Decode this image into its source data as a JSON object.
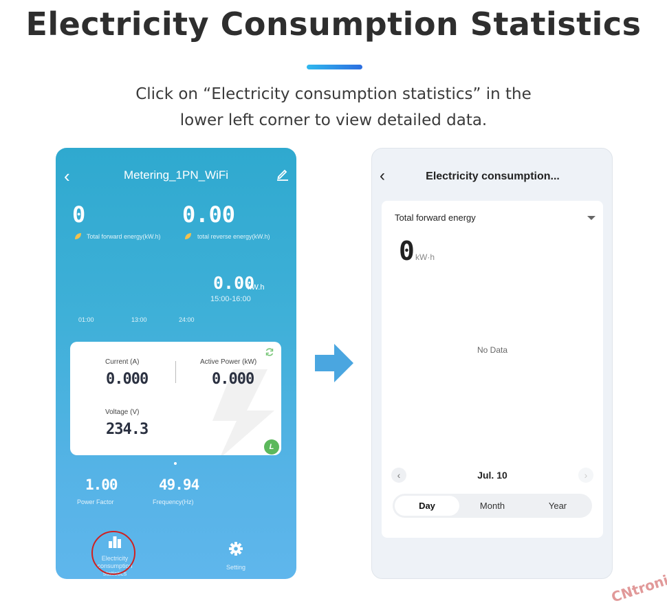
{
  "header": {
    "title": "Electricity Consumption Statistics",
    "subtitle_line1": "Click on “Electricity consumption statistics” in the",
    "subtitle_line2": "lower left corner to view detailed data."
  },
  "left_phone": {
    "title": "Metering_1PN_WiFi",
    "forward_energy_value": "0",
    "forward_energy_label": "Total forward energy(kW.h)",
    "reverse_energy_value": "0.00",
    "reverse_energy_label": "total reverse energy(kW.h)",
    "hour_value": "0.00",
    "hour_unit": "kW.h",
    "hour_range": "15:00-16:00",
    "time_ticks": [
      "01:00",
      "13:00",
      "24:00"
    ],
    "card": {
      "current_label": "Current (A)",
      "current_value": "0.000",
      "power_label": "Active Power (kW)",
      "power_value": "0.000",
      "voltage_label": "Voltage (V)",
      "voltage_value": "234.3",
      "badge": "L"
    },
    "power_factor_value": "1.00",
    "power_factor_label": "Power Factor",
    "frequency_value": "49.94",
    "frequency_label": "Frequency(Hz)",
    "nav_stats_label": "Electricity consumption statistics",
    "nav_setting_label": "Setting"
  },
  "right_phone": {
    "title": "Electricity consumption...",
    "metric_selected": "Total forward energy",
    "value": "0",
    "unit": "kW·h",
    "empty_text": "No Data",
    "date_label": "Jul. 10",
    "periods": [
      "Day",
      "Month",
      "Year"
    ],
    "active_period": "Day"
  },
  "watermark": "CNtronic",
  "colors": {
    "left_bg": "#3fb0d8",
    "accent_bar_start": "#2fb8ee",
    "accent_bar_end": "#2c6ee0",
    "arrow": "#4aa6e0",
    "highlight_circle": "#d0201f",
    "badge": "#5cb85c"
  }
}
